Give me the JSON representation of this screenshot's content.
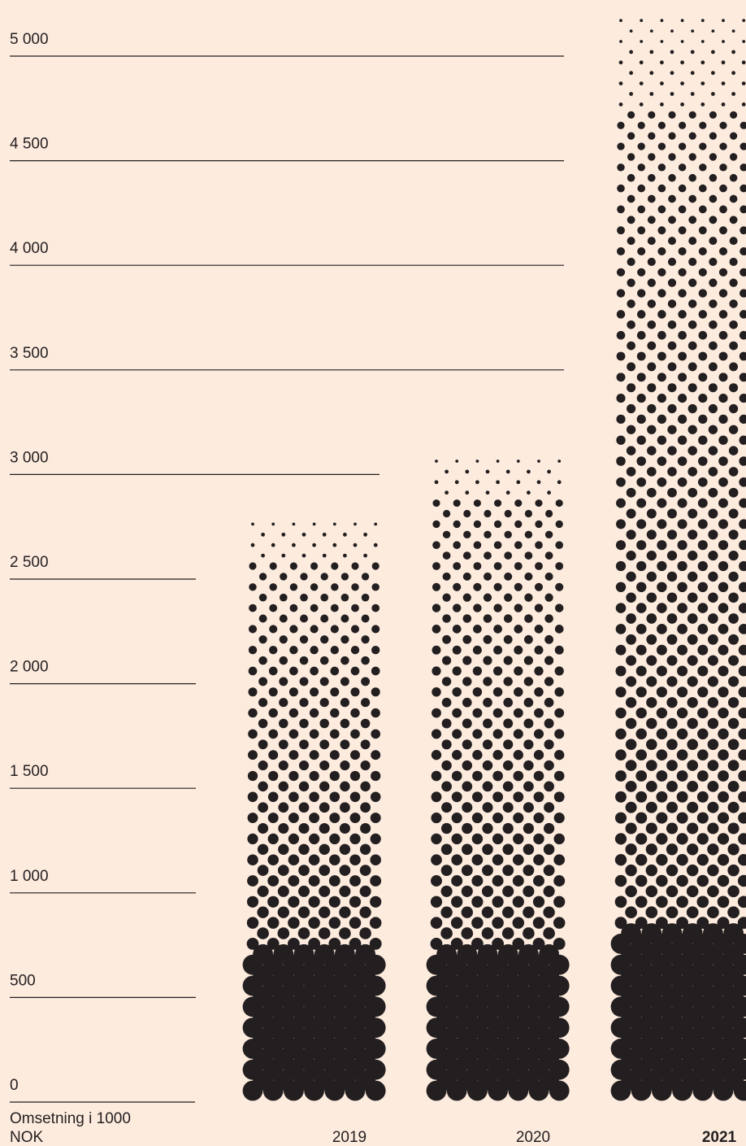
{
  "colors": {
    "background": "#fdebde",
    "ink": "#231f20"
  },
  "chart_data": {
    "type": "bar",
    "title": "",
    "ylabel": "Omsetning i 1000 NOK",
    "ylabel_lines": [
      "Omsetning i 1000",
      "NOK"
    ],
    "ylim": [
      0,
      5000
    ],
    "yticks": [
      0,
      500,
      1000,
      1500,
      2000,
      2500,
      3000,
      3500,
      4000,
      4500,
      5000
    ],
    "ytick_labels": [
      "0",
      "500",
      "1 000",
      "1 500",
      "2 000",
      "2 500",
      "3 000",
      "3 500",
      "4 000",
      "4 500",
      "5 000"
    ],
    "categories": [
      "2019",
      "2020",
      "2021"
    ],
    "highlight_category": "2021",
    "values": [
      2800,
      3100,
      5190
    ],
    "solid_base_values": [
      750,
      750,
      850
    ],
    "style": "halftone-dots",
    "grid": true
  }
}
